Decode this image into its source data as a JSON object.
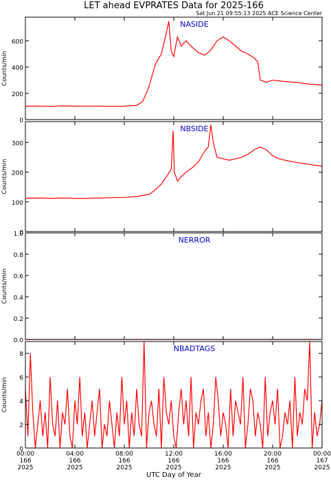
{
  "header": {
    "title": "LET ahead EVPRATES Data for 2025-166",
    "timestamp": "Sat Jun 21 09:55:13 2025 ACE Science Center"
  },
  "xaxis": {
    "label": "UTC Day of Year",
    "ticks": [
      {
        "hour": 0,
        "time": "00:00",
        "doy": "166",
        "year": "2025"
      },
      {
        "hour": 4,
        "time": "04:00",
        "doy": "166",
        "year": "2025"
      },
      {
        "hour": 8,
        "time": "08:00",
        "doy": "166",
        "year": "2025"
      },
      {
        "hour": 12,
        "time": "12:00",
        "doy": "166",
        "year": "2025"
      },
      {
        "hour": 16,
        "time": "16:00",
        "doy": "166",
        "year": "2025"
      },
      {
        "hour": 20,
        "time": "20:00",
        "doy": "166",
        "year": "2025"
      },
      {
        "hour": 24,
        "time": "00:00",
        "doy": "167",
        "year": "2025"
      }
    ]
  },
  "colors": {
    "series": "#ff0000",
    "panel_label": "#0000cc",
    "axes": "#000000"
  },
  "chart_data": [
    {
      "type": "line",
      "panel_label": "NASIDE",
      "ylabel": "Counts/min",
      "xlim": [
        0,
        24
      ],
      "ylim": [
        0,
        780
      ],
      "yticks": [
        0,
        200,
        400,
        600
      ],
      "yticklabels": [
        "0",
        "200",
        "400",
        "600"
      ],
      "grid": false,
      "series": [
        {
          "color": "#ff0000",
          "x": [
            0,
            1,
            2,
            3,
            4,
            5,
            6,
            7,
            8,
            9,
            9.5,
            10,
            10.5,
            11,
            11.3,
            11.6,
            11.8,
            12,
            12.3,
            12.6,
            13,
            13.5,
            14,
            14.5,
            15,
            15.5,
            16,
            16.5,
            17,
            17.5,
            18,
            18.5,
            18.8,
            19,
            19.5,
            20,
            21,
            22,
            23,
            24
          ],
          "y": [
            102,
            103,
            101,
            104,
            102,
            103,
            102,
            101,
            102,
            108,
            140,
            250,
            420,
            500,
            620,
            750,
            520,
            480,
            630,
            560,
            600,
            550,
            510,
            490,
            530,
            600,
            630,
            600,
            560,
            520,
            500,
            470,
            440,
            300,
            285,
            300,
            290,
            282,
            270,
            262
          ]
        }
      ]
    },
    {
      "type": "line",
      "panel_label": "NBSIDE",
      "ylabel": "Counts/min",
      "xlim": [
        0,
        24
      ],
      "ylim": [
        0,
        370
      ],
      "yticks": [
        0,
        100,
        200,
        300
      ],
      "yticklabels": [
        "0",
        "100",
        "200",
        "300"
      ],
      "grid": false,
      "series": [
        {
          "color": "#ff0000",
          "x": [
            0,
            1,
            2,
            3,
            4,
            5,
            6,
            7,
            8,
            9,
            10,
            10.5,
            11,
            11.5,
            11.8,
            11.95,
            12.05,
            12.3,
            12.6,
            13,
            13.5,
            14,
            14.5,
            14.8,
            15,
            15.2,
            15.5,
            16,
            16.5,
            17,
            17.5,
            18,
            18.5,
            19,
            19.5,
            20,
            20.5,
            21,
            22,
            23,
            24
          ],
          "y": [
            112,
            113,
            112,
            113,
            112,
            112,
            113,
            114,
            115,
            118,
            125,
            140,
            160,
            190,
            210,
            340,
            200,
            170,
            185,
            200,
            215,
            235,
            270,
            285,
            360,
            300,
            250,
            245,
            240,
            245,
            250,
            260,
            275,
            285,
            275,
            255,
            245,
            240,
            232,
            226,
            220
          ]
        }
      ]
    },
    {
      "type": "line",
      "panel_label": "NERROR",
      "ylabel": "Counts/min",
      "xlim": [
        0,
        24
      ],
      "ylim": [
        0,
        1
      ],
      "yticks": [
        0.0,
        0.2,
        0.4,
        0.6,
        0.8,
        1.0
      ],
      "yticklabels": [
        "0.0",
        "0.2",
        "0.4",
        "0.6",
        "0.8",
        "1.0"
      ],
      "grid": false,
      "series": [
        {
          "color": "#ff0000",
          "x": [
            0,
            24
          ],
          "y": [
            0,
            0
          ]
        }
      ]
    },
    {
      "type": "line",
      "panel_label": "NBADTAGS",
      "ylabel": "Counts/min",
      "xlim": [
        0,
        24
      ],
      "ylim": [
        0,
        9
      ],
      "yticks": [
        0,
        2,
        4,
        6,
        8
      ],
      "yticklabels": [
        "0",
        "2",
        "4",
        "6",
        "8"
      ],
      "grid": false,
      "series": [
        {
          "color": "#ff0000",
          "x": [
            0.0,
            0.2,
            0.4,
            0.6,
            0.8,
            1.0,
            1.2,
            1.4,
            1.6,
            1.8,
            2.0,
            2.2,
            2.4,
            2.6,
            2.8,
            3.0,
            3.2,
            3.4,
            3.6,
            3.8,
            4.0,
            4.2,
            4.4,
            4.6,
            4.8,
            5.0,
            5.2,
            5.4,
            5.6,
            5.8,
            6.0,
            6.2,
            6.4,
            6.6,
            6.8,
            7.0,
            7.2,
            7.4,
            7.6,
            7.8,
            8.0,
            8.2,
            8.4,
            8.6,
            8.8,
            9.0,
            9.2,
            9.4,
            9.6,
            9.8,
            10.0,
            10.2,
            10.4,
            10.6,
            10.8,
            11.0,
            11.2,
            11.4,
            11.6,
            11.8,
            12.0,
            12.2,
            12.4,
            12.6,
            12.8,
            13.0,
            13.2,
            13.4,
            13.6,
            13.8,
            14.0,
            14.2,
            14.4,
            14.6,
            14.8,
            15.0,
            15.2,
            15.4,
            15.6,
            15.8,
            16.0,
            16.2,
            16.4,
            16.6,
            16.8,
            17.0,
            17.2,
            17.4,
            17.6,
            17.8,
            18.0,
            18.2,
            18.4,
            18.6,
            18.8,
            19.0,
            19.2,
            19.4,
            19.6,
            19.8,
            20.0,
            20.2,
            20.4,
            20.6,
            20.8,
            21.0,
            21.2,
            21.4,
            21.6,
            21.8,
            22.0,
            22.2,
            22.4,
            22.6,
            22.8,
            23.0,
            23.2,
            23.4,
            23.6,
            23.8,
            24.0
          ],
          "y": [
            5,
            1,
            8,
            3,
            0,
            2,
            4,
            1,
            3,
            0,
            6,
            2,
            1,
            4,
            0,
            3,
            2,
            5,
            1,
            0,
            4,
            2,
            6,
            1,
            3,
            0,
            2,
            4,
            1,
            3,
            5,
            0,
            2,
            1,
            4,
            2,
            0,
            3,
            1,
            6,
            2,
            4,
            0,
            3,
            1,
            5,
            2,
            1,
            9,
            0,
            3,
            4,
            2,
            1,
            5,
            0,
            6,
            3,
            2,
            4,
            1,
            0,
            3,
            5,
            2,
            4,
            1,
            6,
            0,
            3,
            2,
            4,
            5,
            1,
            3,
            0,
            2,
            6,
            4,
            1,
            3,
            2,
            0,
            5,
            1,
            4,
            3,
            2,
            6,
            0,
            2,
            5,
            4,
            1,
            3,
            2,
            0,
            6,
            1,
            3,
            4,
            2,
            5,
            0,
            1,
            3,
            2,
            4,
            0,
            6,
            1,
            3,
            2,
            5,
            4,
            9,
            0,
            3,
            1,
            2,
            4
          ]
        }
      ]
    }
  ]
}
